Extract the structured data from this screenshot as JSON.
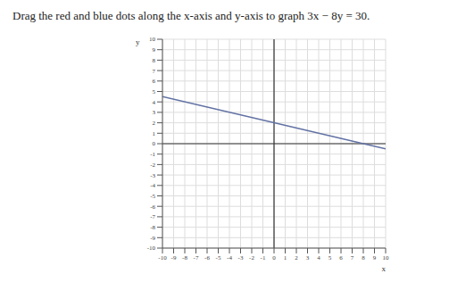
{
  "chart_data": {
    "type": "line",
    "title": "Drag the red and blue dots along the x-axis and y-axis to graph 3x − 8y = 30.",
    "xlabel": "x",
    "ylabel": "y",
    "x": [
      -10,
      0,
      8,
      10
    ],
    "values": [
      4.5,
      2,
      0,
      -0.5
    ],
    "color": "#6272a4",
    "xlim": [
      -10,
      10
    ],
    "ylim": [
      -10,
      10
    ],
    "xticks": [
      -10,
      -9,
      -8,
      -7,
      -6,
      -5,
      -4,
      -3,
      -2,
      -1,
      0,
      1,
      2,
      3,
      4,
      5,
      6,
      7,
      8,
      9,
      10
    ],
    "yticks": [
      -10,
      -9,
      -8,
      -7,
      -6,
      -5,
      -4,
      -3,
      -2,
      -1,
      0,
      1,
      2,
      3,
      4,
      5,
      6,
      7,
      8,
      9,
      10
    ],
    "grid": true
  }
}
